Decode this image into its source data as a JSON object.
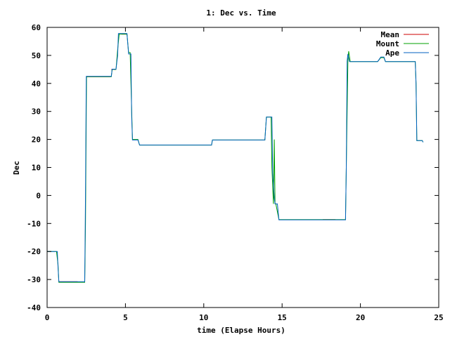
{
  "chart_data": {
    "type": "line",
    "title": "1: Dec vs. Time",
    "xlabel": "time (Elapse Hours)",
    "ylabel": "Dec",
    "xlim": [
      0,
      25
    ],
    "ylim": [
      -40,
      60
    ],
    "xticks": [
      0,
      5,
      10,
      15,
      20,
      25
    ],
    "yticks": [
      -40,
      -30,
      -20,
      -10,
      0,
      10,
      20,
      30,
      40,
      50,
      60
    ],
    "grid": false,
    "legend_position": "top-right",
    "series": [
      {
        "name": "Mean",
        "color": "#cc0000",
        "segments": [
          [
            [
              0.75,
              -30.8
            ],
            [
              1.95,
              -30.8
            ]
          ],
          [
            [
              2.5,
              42.4
            ],
            [
              4.05,
              42.4
            ]
          ],
          [
            [
              4.1,
              45.0
            ],
            [
              4.4,
              45.0
            ]
          ],
          [
            [
              4.75,
              57.6
            ],
            [
              5.1,
              57.6
            ]
          ],
          [
            [
              17.6,
              -8.6
            ],
            [
              18.4,
              -8.6
            ]
          ]
        ]
      },
      {
        "name": "Mount",
        "color": "#00a000",
        "segments": [
          [
            [
              0,
              -20
            ],
            [
              0.6,
              -20
            ],
            [
              0.7,
              -25
            ],
            [
              0.75,
              -31
            ],
            [
              2.4,
              -31
            ],
            [
              2.45,
              -10
            ],
            [
              2.5,
              30
            ],
            [
              2.52,
              42.4
            ],
            [
              4.1,
              42.4
            ],
            [
              4.15,
              45
            ],
            [
              4.4,
              45
            ],
            [
              4.5,
              52
            ],
            [
              4.6,
              57.6
            ],
            [
              5.1,
              57.6
            ],
            [
              5.2,
              51
            ],
            [
              5.3,
              51
            ],
            [
              5.4,
              30
            ],
            [
              5.45,
              20
            ],
            [
              5.8,
              20
            ],
            [
              5.9,
              18
            ],
            [
              10.5,
              18
            ],
            [
              10.55,
              19.8
            ],
            [
              13.9,
              19.8
            ],
            [
              14.0,
              28
            ],
            [
              14.3,
              28
            ],
            [
              14.35,
              10
            ],
            [
              14.45,
              -3
            ],
            [
              14.5,
              20
            ],
            [
              14.55,
              -3
            ],
            [
              14.6,
              -3
            ],
            [
              14.8,
              -8.6
            ],
            [
              19.05,
              -8.6
            ],
            [
              19.1,
              10
            ],
            [
              19.2,
              48
            ],
            [
              19.25,
              51.5
            ],
            [
              19.35,
              47.8
            ],
            [
              21.1,
              47.8
            ],
            [
              21.3,
              49.2
            ],
            [
              21.5,
              49.2
            ],
            [
              21.6,
              47.8
            ],
            [
              23.5,
              47.8
            ],
            [
              23.55,
              40
            ],
            [
              23.6,
              20
            ],
            [
              23.6,
              19.6
            ],
            [
              23.95,
              19.6
            ],
            [
              24.0,
              19
            ]
          ]
        ]
      },
      {
        "name": "Ape",
        "color": "#0060c0",
        "segments": [
          [
            [
              0,
              -20
            ],
            [
              0.65,
              -20
            ],
            [
              0.7,
              -26
            ],
            [
              0.75,
              -30.8
            ],
            [
              2.4,
              -30.8
            ],
            [
              2.45,
              0
            ],
            [
              2.5,
              42.5
            ],
            [
              4.1,
              42.5
            ],
            [
              4.15,
              45.1
            ],
            [
              4.4,
              45.1
            ],
            [
              4.5,
              50
            ],
            [
              4.55,
              57.8
            ],
            [
              5.1,
              57.8
            ],
            [
              5.2,
              50.5
            ],
            [
              5.35,
              50.5
            ],
            [
              5.4,
              28
            ],
            [
              5.45,
              19.8
            ],
            [
              5.8,
              19.8
            ],
            [
              5.9,
              18
            ],
            [
              10.5,
              18
            ],
            [
              10.55,
              19.8
            ],
            [
              13.9,
              19.8
            ],
            [
              14.0,
              28
            ],
            [
              14.35,
              28
            ],
            [
              14.4,
              8
            ],
            [
              14.5,
              -1
            ],
            [
              14.55,
              -3
            ],
            [
              14.7,
              -3
            ],
            [
              14.8,
              -8.7
            ],
            [
              19.05,
              -8.7
            ],
            [
              19.1,
              10
            ],
            [
              19.15,
              48
            ],
            [
              19.2,
              50.5
            ],
            [
              19.3,
              47.8
            ],
            [
              21.1,
              47.8
            ],
            [
              21.3,
              49.4
            ],
            [
              21.5,
              49.4
            ],
            [
              21.6,
              47.8
            ],
            [
              23.5,
              47.8
            ],
            [
              23.55,
              40
            ],
            [
              23.6,
              20
            ],
            [
              23.6,
              19.6
            ],
            [
              23.95,
              19.6
            ],
            [
              24.0,
              19
            ]
          ]
        ]
      }
    ]
  }
}
